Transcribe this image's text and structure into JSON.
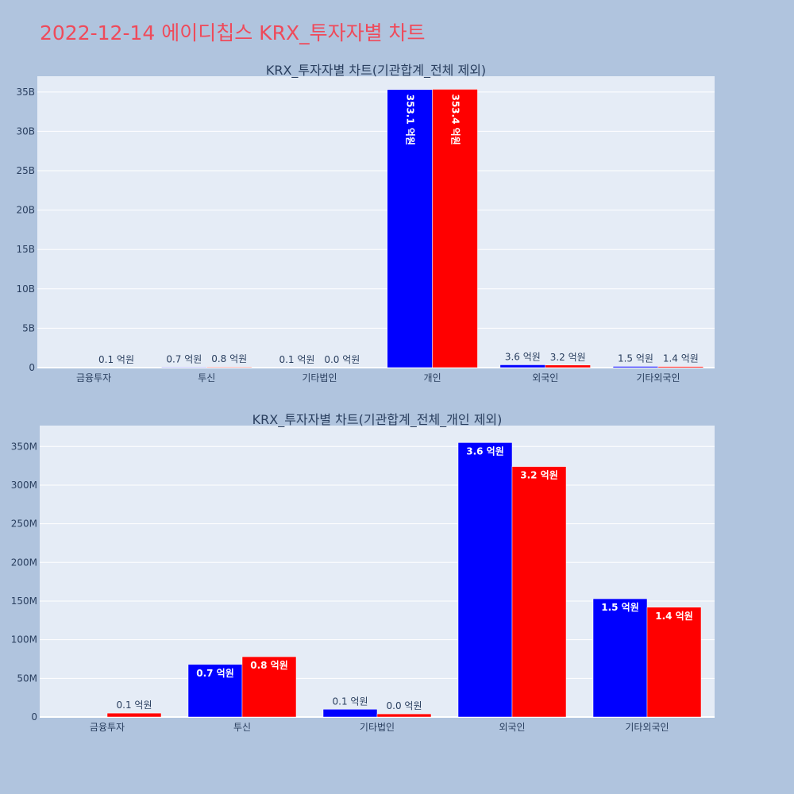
{
  "page_title": "2022-12-14 에이디칩스 KRX_투자자별 차트",
  "colors": {
    "buy": "#0000ff",
    "sell": "#ff0000",
    "plot_bg": "#e5ecf6",
    "page_bg": "#b0c4de",
    "title": "#ef4a5a"
  },
  "chart_data": [
    {
      "type": "bar",
      "title": "KRX_투자자별 차트(기관합계_전체 제외)",
      "categories": [
        "금융투자",
        "투신",
        "기타법인",
        "개인",
        "외국인",
        "기타외국인"
      ],
      "ylim": [
        0,
        37000000000
      ],
      "yticks": [
        0,
        5000000000,
        10000000000,
        15000000000,
        20000000000,
        25000000000,
        30000000000,
        35000000000
      ],
      "ytick_labels": [
        "0",
        "5B",
        "10B",
        "15B",
        "20B",
        "25B",
        "30B",
        "35B"
      ],
      "series": [
        {
          "values": [
            0,
            68000000,
            10000000,
            35310000000,
            355000000,
            153000000
          ],
          "labels": [
            "",
            "0.7 억원",
            "0.1 억원",
            "353.1 억원",
            "3.6 억원",
            "1.5 억원"
          ]
        },
        {
          "values": [
            5000000,
            78000000,
            4000000,
            35340000000,
            324000000,
            142000000
          ],
          "labels": [
            "0.1 억원",
            "0.8 억원",
            "0.0 억원",
            "353.4 억원",
            "3.2 억원",
            "1.4 억원"
          ]
        }
      ]
    },
    {
      "type": "bar",
      "title": "KRX_투자자별 차트(기관합계_전체_개인 제외)",
      "categories": [
        "금융투자",
        "투신",
        "기타법인",
        "외국인",
        "기타외국인"
      ],
      "ylim": [
        0,
        377000000
      ],
      "yticks": [
        0,
        50000000,
        100000000,
        150000000,
        200000000,
        250000000,
        300000000,
        350000000
      ],
      "ytick_labels": [
        "0",
        "50M",
        "100M",
        "150M",
        "200M",
        "250M",
        "300M",
        "350M"
      ],
      "series": [
        {
          "values": [
            0,
            68000000,
            10000000,
            355000000,
            153000000
          ],
          "labels": [
            "",
            "0.7 억원",
            "0.1 억원",
            "3.6 억원",
            "1.5 억원"
          ]
        },
        {
          "values": [
            5000000,
            78000000,
            4000000,
            324000000,
            142000000
          ],
          "labels": [
            "0.1 억원",
            "0.8 억원",
            "0.0 억원",
            "3.2 억원",
            "1.4 억원"
          ]
        }
      ]
    }
  ]
}
